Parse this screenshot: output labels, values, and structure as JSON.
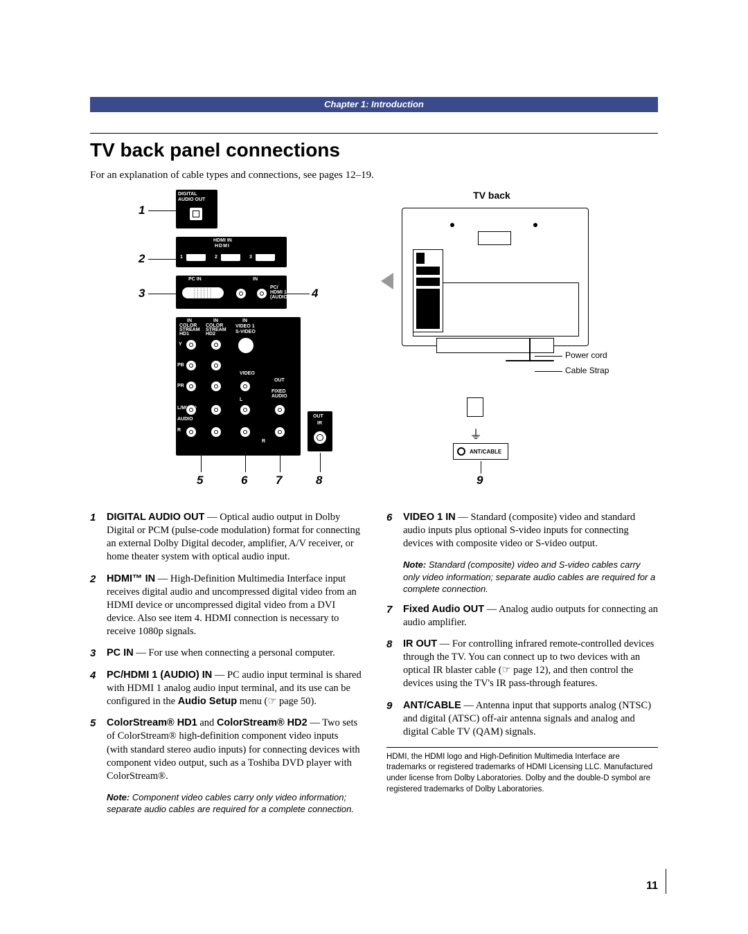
{
  "chapter_band": "Chapter 1: Introduction",
  "heading": "TV back panel connections",
  "intro": "For an explanation of cable types and connections, see pages 12–19.",
  "page_number": "11",
  "panel": {
    "callouts": {
      "n1": "1",
      "n2": "2",
      "n3": "3",
      "n4": "4",
      "n5": "5",
      "n6": "6",
      "n7": "7",
      "n8": "8"
    },
    "digital_audio_out": "DIGITAL\nAUDIO OUT",
    "hdmi_in": "HDMI IN",
    "hdmi_logo": "HDMI",
    "hdmi_1": "1",
    "hdmi_2": "2",
    "hdmi_3": "3",
    "pc_in": "PC IN",
    "in": "IN",
    "pc_hdmi_audio": "PC/\nHDMI 1\n(AUDIO)",
    "cs_hd1": "COLOR\nSTREAM\nHD1",
    "cs_hd2": "COLOR\nSTREAM\nHD2",
    "video1": "VIDEO 1",
    "svideo": "S-VIDEO",
    "y": "Y",
    "pb": "PB",
    "pr": "PR",
    "l": "L",
    "r": "R",
    "laudio": "L/MONO",
    "audio": "AUDIO",
    "video": "VIDEO",
    "out": "OUT",
    "fixed_audio": "FIXED\nAUDIO",
    "ir": "IR"
  },
  "tvback": {
    "title": "TV back",
    "power": "Power cord",
    "strap": "Cable Strap",
    "ant": "ANT/CABLE",
    "n9": "9"
  },
  "items": [
    {
      "n": "1",
      "term": "DIGITAL AUDIO OUT",
      "text": " — Optical audio output in Dolby Digital or PCM (pulse-code modulation) format for connecting an external Dolby Digital decoder, amplifier, A/V receiver, or home theater system with optical audio input."
    },
    {
      "n": "2",
      "term": "HDMI™ IN",
      "text": " — High-Definition Multimedia Interface input receives digital audio and uncompressed digital video from an HDMI device or uncompressed digital video from a DVI device. Also see item 4. HDMI connection is necessary to receive 1080p signals."
    },
    {
      "n": "3",
      "term": "PC IN",
      "text": " — For use when connecting a personal computer."
    },
    {
      "n": "4",
      "term": "PC/HDMI 1 (AUDIO) IN",
      "text": " — PC audio input terminal is shared with HDMI 1 analog audio input terminal, and its use can be configured in the ",
      "term2": "Audio Setup",
      "tail": " menu (☞ page 50)."
    },
    {
      "n": "5",
      "term": "ColorStream® HD1",
      "mid": " and ",
      "term2": "ColorStream® HD2",
      "text": " — Two sets of ColorStream® high-definition component video inputs (with standard stereo audio inputs) for connecting devices with component video output, such as a Toshiba DVD player with ColorStream®."
    }
  ],
  "note5": "Component video cables carry only video information; separate audio cables are required for a complete connection.",
  "items_r": [
    {
      "n": "6",
      "term": "VIDEO 1 IN",
      "text": " — Standard (composite) video and standard audio inputs plus optional S-video inputs for connecting devices with composite video or S-video output."
    },
    {
      "n": "7",
      "term": "Fixed Audio OUT",
      "text": " — Analog audio outputs for connecting an audio amplifier."
    },
    {
      "n": "8",
      "term": "IR OUT",
      "text": " — For controlling infrared remote-controlled devices through the TV. You can connect up to two devices with an optical IR blaster cable (☞ page 12), and then control the devices using the TV's IR pass-through features."
    },
    {
      "n": "9",
      "term": "ANT/CABLE",
      "text": " — Antenna input that supports analog (NTSC) and digital (ATSC) off-air antenna signals and analog and digital Cable TV (QAM) signals."
    }
  ],
  "note6": "Standard (composite) video and S-video cables carry only video information; separate audio cables are required for a complete connection.",
  "note_label": "Note:",
  "fineprint": "HDMI, the HDMI logo and High-Definition Multimedia Interface are trademarks or registered trademarks of HDMI Licensing LLC. Manufactured under license from Dolby Laboratories. Dolby and the double-D symbol are registered trademarks of Dolby Laboratories.",
  "colors": {
    "band": "#3a4a8a"
  }
}
